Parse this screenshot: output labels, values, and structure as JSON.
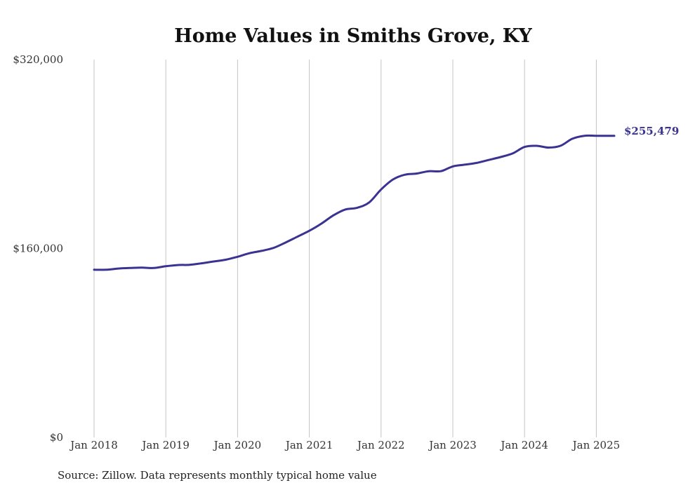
{
  "chart_data": {
    "type": "line",
    "title": "Home Values in Smiths Grove, KY",
    "xlabel": "",
    "ylabel": "",
    "ylim": [
      0,
      320000
    ],
    "y_ticks": [
      {
        "value": 0,
        "label": "$0"
      },
      {
        "value": 160000,
        "label": "$160,000"
      },
      {
        "value": 320000,
        "label": "$320,000"
      }
    ],
    "x_ticks": [
      "Jan 2018",
      "Jan 2019",
      "Jan 2020",
      "Jan 2021",
      "Jan 2022",
      "Jan 2023",
      "Jan 2024",
      "Jan 2025"
    ],
    "vertical_grid": true,
    "series": [
      {
        "color": "#3a3391",
        "x": [
          "2018-01",
          "2018-03",
          "2018-05",
          "2018-07",
          "2018-09",
          "2018-11",
          "2019-01",
          "2019-03",
          "2019-05",
          "2019-07",
          "2019-09",
          "2019-11",
          "2020-01",
          "2020-03",
          "2020-05",
          "2020-07",
          "2020-09",
          "2020-11",
          "2021-01",
          "2021-03",
          "2021-05",
          "2021-07",
          "2021-09",
          "2021-11",
          "2022-01",
          "2022-03",
          "2022-05",
          "2022-07",
          "2022-09",
          "2022-11",
          "2023-01",
          "2023-03",
          "2023-05",
          "2023-07",
          "2023-09",
          "2023-11",
          "2024-01",
          "2024-03",
          "2024-05",
          "2024-07",
          "2024-09",
          "2024-11",
          "2025-01",
          "2025-03",
          "2025-04"
        ],
        "values": [
          142000,
          142000,
          143000,
          143500,
          143800,
          143500,
          145000,
          146000,
          146200,
          147500,
          149000,
          150500,
          153000,
          156000,
          158000,
          160500,
          165000,
          170000,
          175000,
          181000,
          188000,
          193000,
          194500,
          199000,
          210000,
          218500,
          222500,
          223500,
          225500,
          225500,
          229500,
          231000,
          232500,
          235000,
          237500,
          240500,
          246000,
          247000,
          245500,
          247000,
          253000,
          255479,
          255479,
          255479,
          255479
        ]
      }
    ],
    "end_label": "$255,479",
    "source": "Source: Zillow. Data represents monthly typical home value"
  }
}
